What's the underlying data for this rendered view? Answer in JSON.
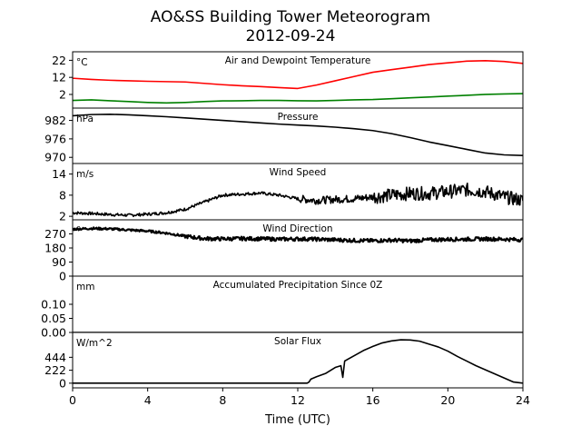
{
  "title": "AO&SS Building Tower Meteorogram",
  "subtitle": "2012-09-24",
  "chart_data": {
    "type": "line",
    "xlabel": "Time (UTC)",
    "xlim": [
      0,
      24
    ],
    "xticks": [
      "0",
      "4",
      "8",
      "12",
      "16",
      "20",
      "24"
    ],
    "colors": {
      "temperature": "#ff0000",
      "dewpoint": "#008000",
      "default": "#000000"
    },
    "panels": [
      {
        "id": "temp",
        "title": "Air and Dewpoint Temperature",
        "unit": "°C",
        "ylim": [
          -6,
          27
        ],
        "yticks": [
          "22",
          "12",
          "2"
        ],
        "ytick_values": [
          22,
          12,
          2
        ],
        "series": [
          {
            "key": "temperature",
            "x": [
              0,
              1,
              2,
              3,
              4,
              5,
              6,
              7,
              8,
              9,
              10,
              11,
              12,
              13,
              14,
              15,
              16,
              17,
              18,
              19,
              20,
              21,
              22,
              23,
              24
            ],
            "y": [
              11.5,
              10.8,
              10.3,
              10.0,
              9.7,
              9.5,
              9.3,
              8.5,
              7.7,
              7.1,
              6.6,
              6.0,
              5.5,
              7.5,
              10.0,
              12.5,
              15.0,
              16.5,
              18.0,
              19.5,
              20.5,
              21.5,
              21.8,
              21.3,
              20.2
            ]
          },
          {
            "key": "dewpoint",
            "x": [
              0,
              1,
              2,
              3,
              4,
              5,
              6,
              7,
              8,
              9,
              10,
              11,
              12,
              13,
              14,
              15,
              16,
              17,
              18,
              19,
              20,
              21,
              22,
              23,
              24
            ],
            "y": [
              -1.5,
              -1.2,
              -1.7,
              -2.2,
              -2.7,
              -3.0,
              -2.7,
              -2.2,
              -1.8,
              -1.7,
              -1.5,
              -1.5,
              -1.7,
              -1.8,
              -1.5,
              -1.2,
              -1.0,
              -0.5,
              0.0,
              0.5,
              1.0,
              1.5,
              2.0,
              2.3,
              2.5
            ]
          }
        ]
      },
      {
        "id": "pressure",
        "title": "Pressure",
        "unit": "hPa",
        "ylim": [
          968,
          986
        ],
        "yticks": [
          "982",
          "976",
          "970"
        ],
        "ytick_values": [
          982,
          976,
          970
        ],
        "series": [
          {
            "key": "default",
            "x": [
              0,
              1,
              2,
              3,
              4,
              5,
              6,
              7,
              8,
              9,
              10,
              11,
              12,
              13,
              14,
              15,
              16,
              17,
              18,
              19,
              20,
              21,
              22,
              23,
              24
            ],
            "y": [
              983.5,
              983.9,
              984.0,
              983.8,
              983.5,
              983.2,
              982.8,
              982.4,
              982.0,
              981.6,
              981.2,
              980.8,
              980.5,
              980.2,
              979.8,
              979.3,
              978.7,
              977.7,
              976.4,
              975.0,
              973.8,
              972.6,
              971.4,
              970.8,
              970.6
            ]
          }
        ]
      },
      {
        "id": "wind-speed",
        "title": "Wind Speed",
        "unit": "m/s",
        "ylim": [
          1,
          17
        ],
        "yticks": [
          "14",
          "8",
          "2"
        ],
        "ytick_values": [
          14,
          8,
          2
        ],
        "series": [
          {
            "key": "default",
            "noise": 1.2,
            "x": [
              0,
              1,
              2,
              3,
              4,
              5,
              6,
              7,
              8,
              9,
              10,
              11,
              12,
              13,
              14,
              15,
              16,
              17,
              18,
              19,
              20,
              21,
              22,
              23,
              24
            ],
            "y": [
              3.0,
              2.8,
              2.5,
              2.3,
              2.6,
              3.0,
              4.0,
              6.0,
              8.0,
              8.3,
              8.6,
              8.0,
              7.0,
              6.5,
              6.8,
              7.0,
              7.5,
              8.0,
              8.5,
              8.5,
              9.0,
              9.5,
              9.0,
              7.5,
              6.5
            ]
          }
        ]
      },
      {
        "id": "wind-direction",
        "title": "Wind Direction",
        "unit": "°",
        "ylim": [
          0,
          360
        ],
        "yticks": [
          "270",
          "180",
          "90",
          "0"
        ],
        "ytick_values": [
          270,
          180,
          90,
          0
        ],
        "series": [
          {
            "key": "default",
            "noise": 12,
            "x": [
              0,
              1,
              2,
              3,
              4,
              5,
              6,
              7,
              8,
              9,
              10,
              11,
              12,
              13,
              14,
              15,
              16,
              17,
              18,
              19,
              20,
              21,
              22,
              23,
              24
            ],
            "y": [
              300,
              305,
              302,
              295,
              288,
              275,
              255,
              240,
              238,
              240,
              239,
              236,
              238,
              236,
              232,
              228,
              226,
              230,
              225,
              232,
              235,
              236,
              238,
              236,
              232
            ]
          }
        ]
      },
      {
        "id": "precip",
        "title": "Accumulated Precipitation Since 0Z",
        "unit": "mm",
        "ylim": [
          0,
          0.2
        ],
        "yticks": [
          "0.10",
          "0.05",
          "0.00"
        ],
        "ytick_values": [
          0.1,
          0.05,
          0.0
        ],
        "series": [
          {
            "key": "default",
            "x": [
              0,
              24
            ],
            "y": [
              0,
              0
            ]
          }
        ]
      },
      {
        "id": "solar",
        "title": "Solar Flux",
        "unit": "W/m^2",
        "ylim": [
          -80,
          870
        ],
        "yticks": [
          "444",
          "222",
          "0"
        ],
        "ytick_values": [
          444,
          222,
          0
        ],
        "series": [
          {
            "key": "default",
            "x": [
              0,
              12.5,
              12.6,
              12.7,
              13,
              13.5,
              14,
              14.3,
              14.4,
              14.5,
              15,
              15.5,
              16,
              16.5,
              17,
              17.5,
              18,
              18.5,
              19,
              19.5,
              20,
              20.5,
              21,
              21.5,
              22,
              22.5,
              23,
              23.5,
              24
            ],
            "y": [
              0,
              0,
              20,
              70,
              110,
              170,
              270,
              300,
              100,
              380,
              470,
              560,
              630,
              690,
              725,
              745,
              740,
              720,
              670,
              620,
              550,
              460,
              380,
              300,
              230,
              160,
              90,
              20,
              0
            ]
          }
        ]
      }
    ]
  }
}
